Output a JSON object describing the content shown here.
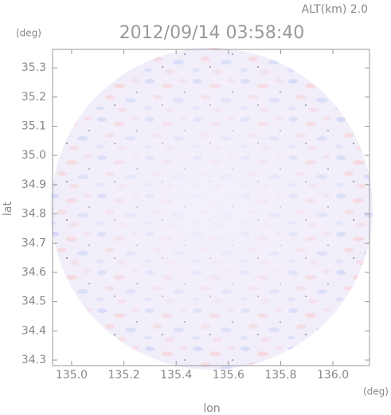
{
  "chart_data": {
    "type": "radar-image",
    "title": "2012/09/14 03:58:40",
    "subtitle": "ALT(km) 2.0",
    "x_label": "lon",
    "y_label": "lat",
    "x_unit": "(deg)",
    "y_unit": "(deg)",
    "xlim": [
      134.927,
      136.14
    ],
    "ylim": [
      34.281,
      35.363
    ],
    "xticks": [
      {
        "value": 135,
        "label": "135.0"
      },
      135.2,
      135.4,
      135.6,
      135.8,
      {
        "value": 136,
        "label": "136.0"
      }
    ],
    "yticks": [
      34.3,
      34.4,
      34.5,
      34.6,
      34.7,
      34.8,
      34.9,
      {
        "value": 35,
        "label": "35.0"
      },
      35.1,
      35.2,
      35.3
    ]
  }
}
